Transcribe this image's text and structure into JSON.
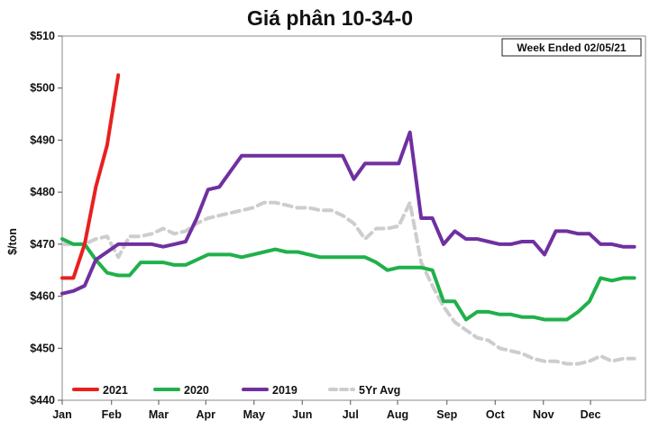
{
  "chart_data": {
    "type": "line",
    "title": "Giá phân 10-34-0",
    "ylabel": "$/ton",
    "xlabel": "",
    "annotation": "Week Ended 02/05/21",
    "ylim": [
      440,
      510
    ],
    "yticks": [
      440,
      450,
      460,
      470,
      480,
      490,
      500,
      510
    ],
    "ytick_labels": [
      "$440",
      "$450",
      "$460",
      "$470",
      "$480",
      "$490",
      "$500",
      "$510"
    ],
    "xlim": [
      0,
      52
    ],
    "categories": [
      "Jan",
      "Feb",
      "Mar",
      "Apr",
      "May",
      "Jun",
      "Jul",
      "Aug",
      "Sep",
      "Oct",
      "Nov",
      "Dec"
    ],
    "category_positions": [
      0,
      4.4,
      8.6,
      12.8,
      17.1,
      21.4,
      25.7,
      29.9,
      34.3,
      38.6,
      42.9,
      47.1
    ],
    "grid": false,
    "legend_position": "bottom-left",
    "series": [
      {
        "name": "2021",
        "color": "#e8211f",
        "dash": "",
        "x": [
          0,
          1,
          2,
          3,
          4,
          5
        ],
        "y": [
          463.5,
          463.5,
          470,
          481,
          489,
          502.5
        ]
      },
      {
        "name": "2020",
        "color": "#20b04b",
        "dash": "",
        "x": [
          0,
          1,
          2,
          3,
          4,
          5,
          6,
          7,
          8,
          9,
          10,
          11,
          12,
          13,
          14,
          15,
          16,
          17,
          18,
          19,
          20,
          21,
          22,
          23,
          24,
          25,
          26,
          27,
          28,
          29,
          30,
          31,
          32,
          33,
          34,
          35,
          36,
          37,
          38,
          39,
          40,
          41,
          42,
          43,
          44,
          45,
          46,
          47,
          48,
          49,
          50,
          51
        ],
        "y": [
          471,
          470,
          470,
          467,
          464.5,
          464,
          464,
          466.5,
          466.5,
          466.5,
          466,
          466,
          467,
          468,
          468,
          468,
          467.5,
          468,
          468.5,
          469,
          468.5,
          468.5,
          468,
          467.5,
          467.5,
          467.5,
          467.5,
          467.5,
          466.5,
          465,
          465.5,
          465.5,
          465.5,
          465,
          459,
          459,
          455.5,
          457,
          457,
          456.5,
          456.5,
          456,
          456,
          455.5,
          455.5,
          455.5,
          457,
          459,
          463.5,
          463,
          463.5,
          463.5
        ]
      },
      {
        "name": "2019",
        "color": "#7030a0",
        "dash": "",
        "x": [
          0,
          1,
          2,
          3,
          4,
          5,
          6,
          7,
          8,
          9,
          10,
          11,
          12,
          13,
          14,
          15,
          16,
          17,
          18,
          19,
          20,
          21,
          22,
          23,
          24,
          25,
          26,
          27,
          28,
          29,
          30,
          31,
          32,
          33,
          34,
          35,
          36,
          37,
          38,
          39,
          40,
          41,
          42,
          43,
          44,
          45,
          46,
          47,
          48,
          49,
          50,
          51
        ],
        "y": [
          460.5,
          461,
          462,
          467,
          468.5,
          470,
          470,
          470,
          470,
          469.5,
          470,
          470.5,
          475,
          480.5,
          481,
          484,
          487,
          487,
          487,
          487,
          487,
          487,
          487,
          487,
          487,
          487,
          482.5,
          485.5,
          485.5,
          485.5,
          485.5,
          491.5,
          475,
          475,
          470,
          472.5,
          471,
          471,
          470.5,
          470,
          470,
          470.5,
          470.5,
          468,
          472.5,
          472.5,
          472,
          472,
          470,
          470,
          469.5,
          469.5
        ]
      },
      {
        "name": "5Yr Avg",
        "color": "#cdcdcd",
        "dash": "9,6",
        "x": [
          0,
          1,
          2,
          3,
          4,
          5,
          6,
          7,
          8,
          9,
          10,
          11,
          12,
          13,
          14,
          15,
          16,
          17,
          18,
          19,
          20,
          21,
          22,
          23,
          24,
          25,
          26,
          27,
          28,
          29,
          30,
          31,
          32,
          33,
          34,
          35,
          36,
          37,
          38,
          39,
          40,
          41,
          42,
          43,
          44,
          45,
          46,
          47,
          48,
          49,
          50,
          51
        ],
        "y": [
          470,
          470,
          470,
          471,
          471.5,
          467.5,
          471.5,
          471.5,
          472,
          473,
          472,
          472.5,
          474,
          475,
          475.5,
          476,
          476.5,
          477,
          478,
          478,
          477.5,
          477,
          477,
          476.5,
          476.5,
          475.5,
          474,
          471,
          473,
          473,
          473.5,
          478,
          466.5,
          462,
          458,
          455,
          453.5,
          452,
          451.5,
          450,
          449.5,
          449,
          448,
          447.5,
          447.5,
          447,
          447,
          447.5,
          448.5,
          447.5,
          448,
          448
        ]
      }
    ]
  }
}
